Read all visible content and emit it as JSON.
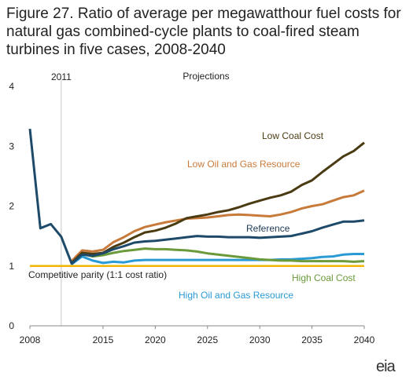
{
  "chart_data": {
    "type": "line",
    "title": "Figure 27. Ratio of average per megawatthour fuel costs for natural gas combined-cycle plants to coal-fired steam turbines in five cases, 2008-2040",
    "xlim": [
      2008,
      2040
    ],
    "ylim": [
      0,
      4
    ],
    "x_ticks": [
      2008,
      2015,
      2020,
      2025,
      2030,
      2035,
      2040
    ],
    "y_ticks": [
      0,
      1,
      2,
      3,
      4
    ],
    "grid": false,
    "annotations": {
      "history_year": "2011",
      "projections": "Projections",
      "parity_label": "Competitive parity (1:1 cost ratio)"
    },
    "parity_value": 1,
    "series": [
      {
        "name": "Low Coal Cost",
        "color": "#4a3b12",
        "x": [
          2012,
          2013,
          2014,
          2015,
          2016,
          2017,
          2018,
          2019,
          2020,
          2021,
          2022,
          2023,
          2024,
          2025,
          2026,
          2027,
          2028,
          2029,
          2030,
          2031,
          2032,
          2033,
          2034,
          2035,
          2036,
          2037,
          2038,
          2039,
          2040
        ],
        "values": [
          1.05,
          1.22,
          1.2,
          1.22,
          1.32,
          1.39,
          1.48,
          1.56,
          1.59,
          1.64,
          1.71,
          1.8,
          1.83,
          1.86,
          1.9,
          1.93,
          1.98,
          2.04,
          2.09,
          2.14,
          2.18,
          2.24,
          2.35,
          2.43,
          2.57,
          2.7,
          2.83,
          2.92,
          3.06
        ]
      },
      {
        "name": "Low Oil and Gas Resource",
        "color": "#c87a3a",
        "x": [
          2012,
          2013,
          2014,
          2015,
          2016,
          2017,
          2018,
          2019,
          2020,
          2021,
          2022,
          2023,
          2024,
          2025,
          2026,
          2027,
          2028,
          2029,
          2030,
          2031,
          2032,
          2033,
          2034,
          2035,
          2036,
          2037,
          2038,
          2039,
          2040
        ],
        "values": [
          1.08,
          1.26,
          1.24,
          1.27,
          1.4,
          1.48,
          1.58,
          1.65,
          1.69,
          1.73,
          1.76,
          1.79,
          1.8,
          1.81,
          1.83,
          1.85,
          1.86,
          1.85,
          1.84,
          1.83,
          1.86,
          1.9,
          1.96,
          2.0,
          2.03,
          2.09,
          2.15,
          2.18,
          2.26
        ]
      },
      {
        "name": "Reference",
        "color": "#1e4a6a",
        "x": [
          2008,
          2009,
          2010,
          2011,
          2012,
          2013,
          2014,
          2015,
          2016,
          2017,
          2018,
          2019,
          2020,
          2021,
          2022,
          2023,
          2024,
          2025,
          2026,
          2027,
          2028,
          2029,
          2030,
          2031,
          2032,
          2033,
          2034,
          2035,
          2036,
          2037,
          2038,
          2039,
          2040
        ],
        "values": [
          3.29,
          1.63,
          1.7,
          1.49,
          1.04,
          1.19,
          1.17,
          1.21,
          1.28,
          1.33,
          1.39,
          1.41,
          1.42,
          1.44,
          1.46,
          1.48,
          1.5,
          1.49,
          1.49,
          1.48,
          1.48,
          1.48,
          1.47,
          1.48,
          1.49,
          1.5,
          1.54,
          1.58,
          1.64,
          1.69,
          1.74,
          1.74,
          1.76
        ]
      },
      {
        "name": "High Coal Cost",
        "color": "#6a9a3a",
        "x": [
          2012,
          2013,
          2014,
          2015,
          2016,
          2017,
          2018,
          2019,
          2020,
          2021,
          2022,
          2023,
          2024,
          2025,
          2026,
          2027,
          2028,
          2029,
          2030,
          2031,
          2032,
          2033,
          2034,
          2035,
          2036,
          2037,
          2038,
          2039,
          2040
        ],
        "values": [
          1.05,
          1.2,
          1.16,
          1.18,
          1.22,
          1.25,
          1.27,
          1.29,
          1.28,
          1.28,
          1.27,
          1.26,
          1.24,
          1.21,
          1.19,
          1.17,
          1.15,
          1.13,
          1.11,
          1.1,
          1.09,
          1.09,
          1.08,
          1.08,
          1.08,
          1.08,
          1.08,
          1.07,
          1.08
        ]
      },
      {
        "name": "High Oil and Gas Resource",
        "color": "#2a9ad4",
        "x": [
          2012,
          2013,
          2014,
          2015,
          2016,
          2017,
          2018,
          2019,
          2020,
          2021,
          2022,
          2023,
          2024,
          2025,
          2026,
          2027,
          2028,
          2029,
          2030,
          2031,
          2032,
          2033,
          2034,
          2035,
          2036,
          2037,
          2038,
          2039,
          2040
        ],
        "values": [
          1.03,
          1.16,
          1.09,
          1.05,
          1.07,
          1.06,
          1.09,
          1.1,
          1.1,
          1.1,
          1.1,
          1.1,
          1.1,
          1.1,
          1.1,
          1.1,
          1.1,
          1.1,
          1.1,
          1.1,
          1.11,
          1.11,
          1.12,
          1.13,
          1.15,
          1.16,
          1.19,
          1.2,
          1.2
        ]
      }
    ],
    "series_labels": {
      "Low Coal Cost": "Low Coal Cost",
      "Low Oil and Gas Resource": "Low Oil and Gas Resource",
      "Reference": "Reference",
      "High Coal Cost": "High Coal Cost",
      "High Oil and Gas Resource": "High Oil and Gas Resource"
    },
    "parity_color": "#f2b400"
  },
  "logo": {
    "text": "eia"
  }
}
